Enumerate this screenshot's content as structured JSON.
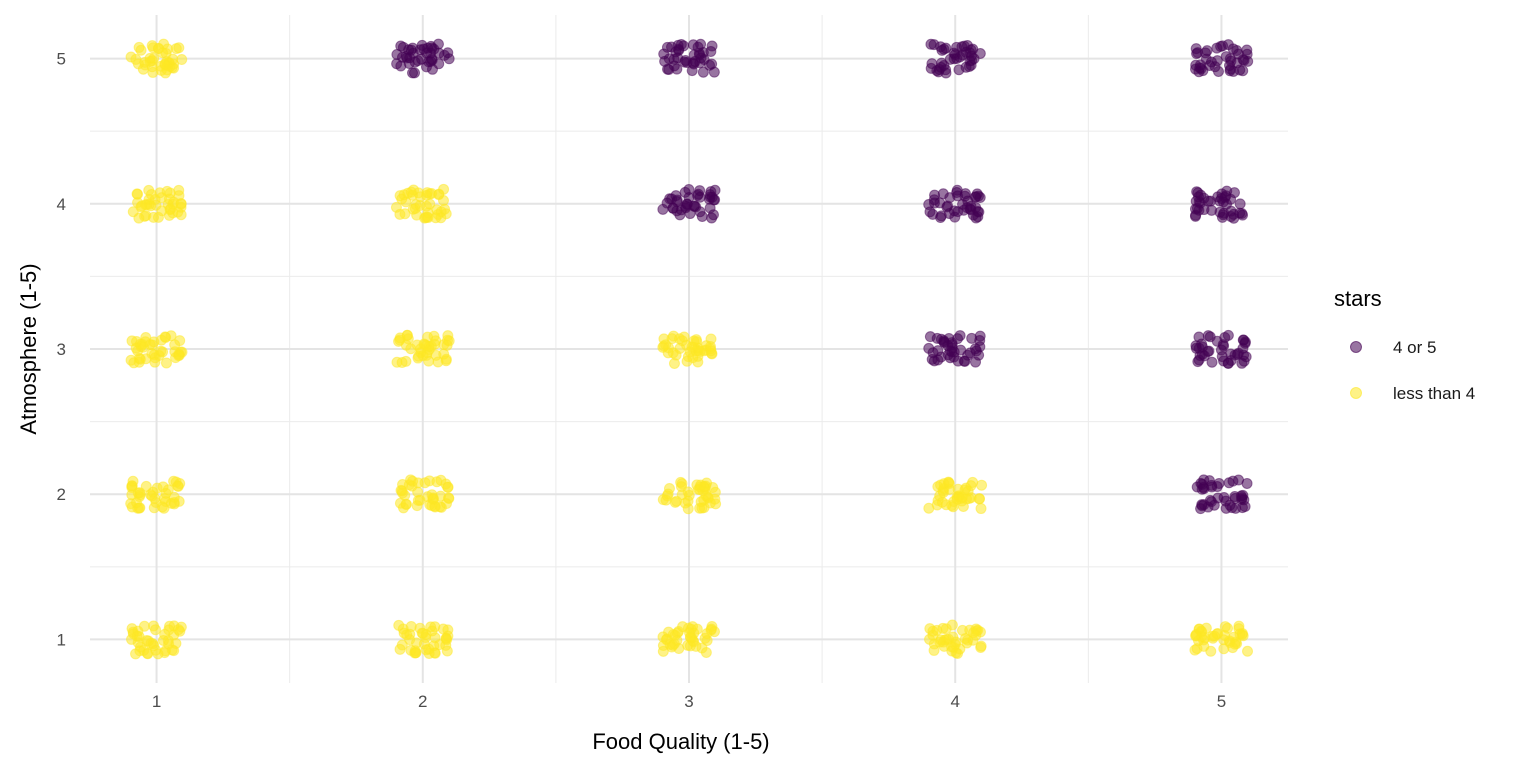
{
  "chart_data": {
    "type": "scatter",
    "title": "",
    "xlabel": "Food Quality (1-5)",
    "ylabel": "Atmosphere (1-5)",
    "xlim": [
      0.75,
      5.25
    ],
    "ylim": [
      0.7,
      5.3
    ],
    "xticks": [
      "1",
      "2",
      "3",
      "4",
      "5"
    ],
    "yticks": [
      "1",
      "2",
      "3",
      "4",
      "5"
    ],
    "grid": true,
    "jitter": 0.1,
    "points_per_cell": 40,
    "legend": {
      "title": "stars",
      "placement": "right",
      "entries": [
        {
          "label": "4 or 5",
          "color": "#440154"
        },
        {
          "label": "less than 4",
          "color": "#FDE725"
        }
      ]
    },
    "cells": [
      {
        "x": 1,
        "y": 5,
        "group": "less than 4"
      },
      {
        "x": 2,
        "y": 5,
        "group": "4 or 5"
      },
      {
        "x": 3,
        "y": 5,
        "group": "4 or 5"
      },
      {
        "x": 4,
        "y": 5,
        "group": "4 or 5"
      },
      {
        "x": 5,
        "y": 5,
        "group": "4 or 5"
      },
      {
        "x": 1,
        "y": 4,
        "group": "less than 4"
      },
      {
        "x": 2,
        "y": 4,
        "group": "less than 4"
      },
      {
        "x": 3,
        "y": 4,
        "group": "4 or 5"
      },
      {
        "x": 4,
        "y": 4,
        "group": "4 or 5"
      },
      {
        "x": 5,
        "y": 4,
        "group": "4 or 5"
      },
      {
        "x": 1,
        "y": 3,
        "group": "less than 4"
      },
      {
        "x": 2,
        "y": 3,
        "group": "less than 4"
      },
      {
        "x": 3,
        "y": 3,
        "group": "less than 4"
      },
      {
        "x": 4,
        "y": 3,
        "group": "4 or 5"
      },
      {
        "x": 5,
        "y": 3,
        "group": "4 or 5"
      },
      {
        "x": 1,
        "y": 2,
        "group": "less than 4"
      },
      {
        "x": 2,
        "y": 2,
        "group": "less than 4"
      },
      {
        "x": 3,
        "y": 2,
        "group": "less than 4"
      },
      {
        "x": 4,
        "y": 2,
        "group": "less than 4"
      },
      {
        "x": 5,
        "y": 2,
        "group": "4 or 5"
      },
      {
        "x": 1,
        "y": 1,
        "group": "less than 4"
      },
      {
        "x": 2,
        "y": 1,
        "group": "less than 4"
      },
      {
        "x": 3,
        "y": 1,
        "group": "less than 4"
      },
      {
        "x": 4,
        "y": 1,
        "group": "less than 4"
      },
      {
        "x": 5,
        "y": 1,
        "group": "less than 4"
      }
    ]
  }
}
